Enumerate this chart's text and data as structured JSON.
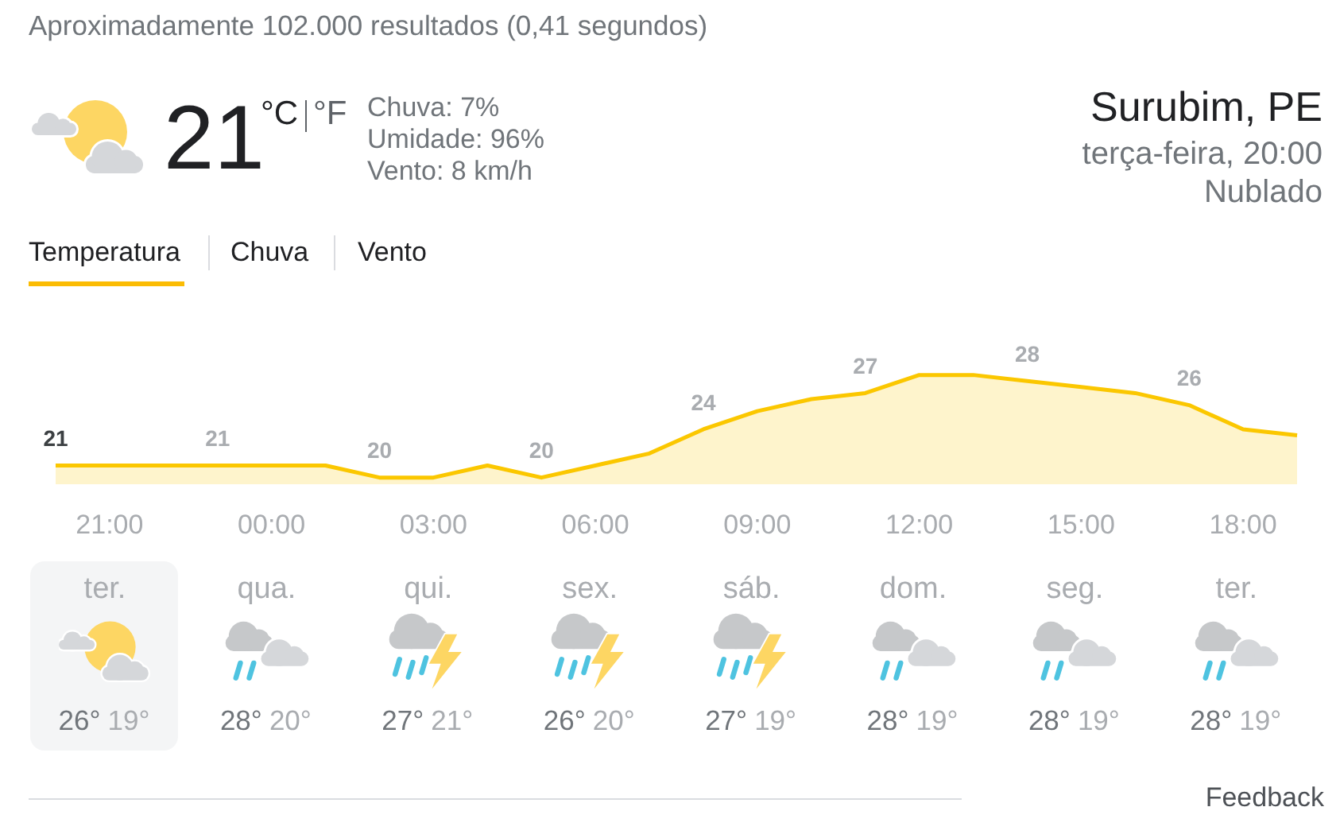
{
  "chart_data": [
    {
      "type": "other",
      "annotations": [
        "Aproximadamente 102.000 resultados (0,41 segundos)",
        "21",
        "°C",
        "°F",
        "Chuva: 7%",
        "Umidade: 96%",
        "Vento: 8 km/h",
        "Surubim, PE",
        "terça-feira, 20:00",
        "Nublado",
        "Temperatura",
        "Chuva",
        "Vento"
      ]
    },
    {
      "type": "area",
      "categories": [
        null,
        "21:00",
        null,
        null,
        "00:00",
        null,
        null,
        "03:00",
        null,
        null,
        "06:00",
        null,
        null,
        "09:00",
        null,
        null,
        "12:00",
        null,
        null,
        "15:00",
        null,
        null,
        "18:00",
        null
      ],
      "values": [
        21,
        21,
        21,
        21,
        21,
        21,
        20,
        20,
        21,
        20,
        21,
        22,
        24,
        25.5,
        26.5,
        27,
        28.5,
        28.5,
        28,
        27.5,
        27,
        26,
        24,
        23.5
      ],
      "color": "#fbc700",
      "value_labels": [
        "21",
        null,
        null,
        "21",
        null,
        null,
        "20",
        null,
        null,
        "20",
        null,
        null,
        "24",
        null,
        null,
        "27",
        null,
        null,
        "28",
        null,
        null,
        "26",
        null,
        null
      ],
      "marker": "none",
      "tick_labels": "x"
    },
    {
      "type": "other",
      "categories": [
        "ter.",
        "qua.",
        "qui.",
        "sex.",
        "sáb.",
        "dom.",
        "seg.",
        "ter."
      ],
      "annotations": [
        "26°",
        "19°",
        "28°",
        "20°",
        "27°",
        "21°",
        "26°",
        "20°",
        "27°",
        "19°",
        "28°",
        "19°",
        "28°",
        "19°",
        "28°",
        "19°",
        "Feedback"
      ]
    }
  ]
}
